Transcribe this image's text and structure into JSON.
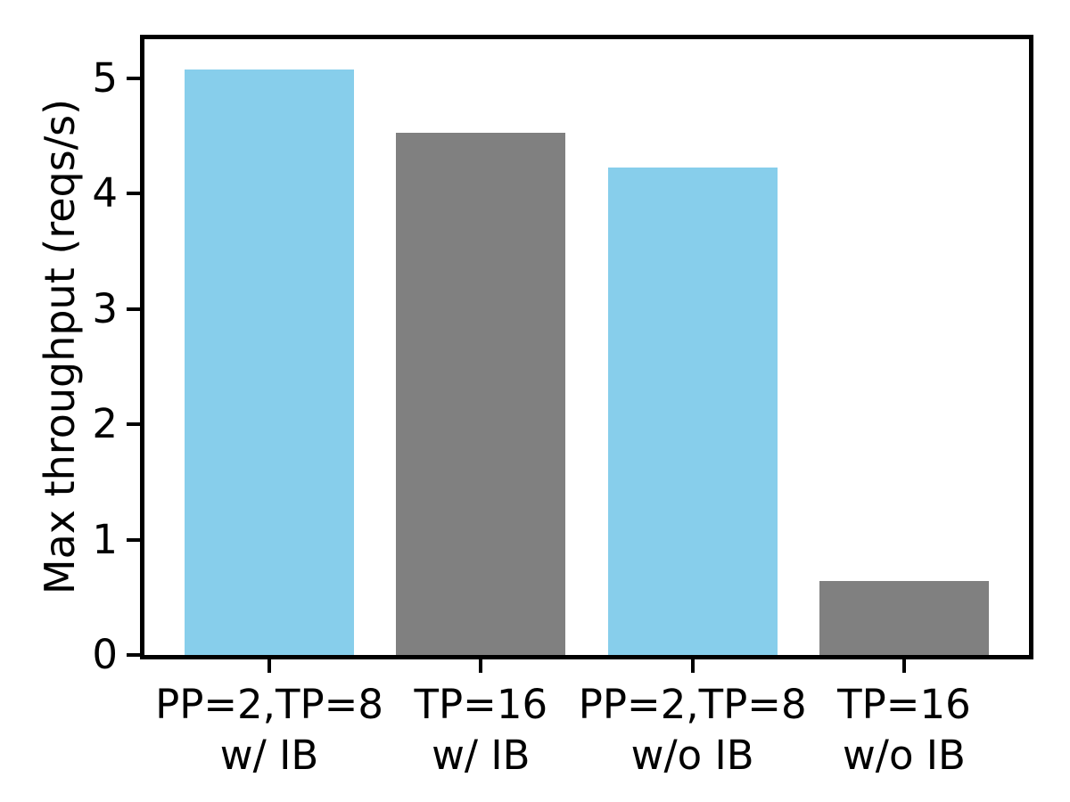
{
  "chart_data": {
    "type": "bar",
    "title": "",
    "ylabel": "Max throughput (reqs/s)",
    "xlabel": "",
    "categories": [
      [
        "PP=2,TP=8",
        "w/ IB"
      ],
      [
        "TP=16",
        "w/ IB"
      ],
      [
        "PP=2,TP=8",
        "w/o IB"
      ],
      [
        "TP=16",
        "w/o IB"
      ]
    ],
    "values": [
      5.08,
      4.53,
      4.23,
      0.64
    ],
    "bar_colors": [
      "#87CEEB",
      "#808080",
      "#87CEEB",
      "#808080"
    ],
    "yticks": [
      0,
      1,
      2,
      3,
      4,
      5
    ],
    "ylim": [
      0,
      5.34
    ],
    "bar_width_fraction": 0.8,
    "grid": false,
    "legend": null,
    "axis_color": "#000000",
    "background": "#ffffff"
  }
}
